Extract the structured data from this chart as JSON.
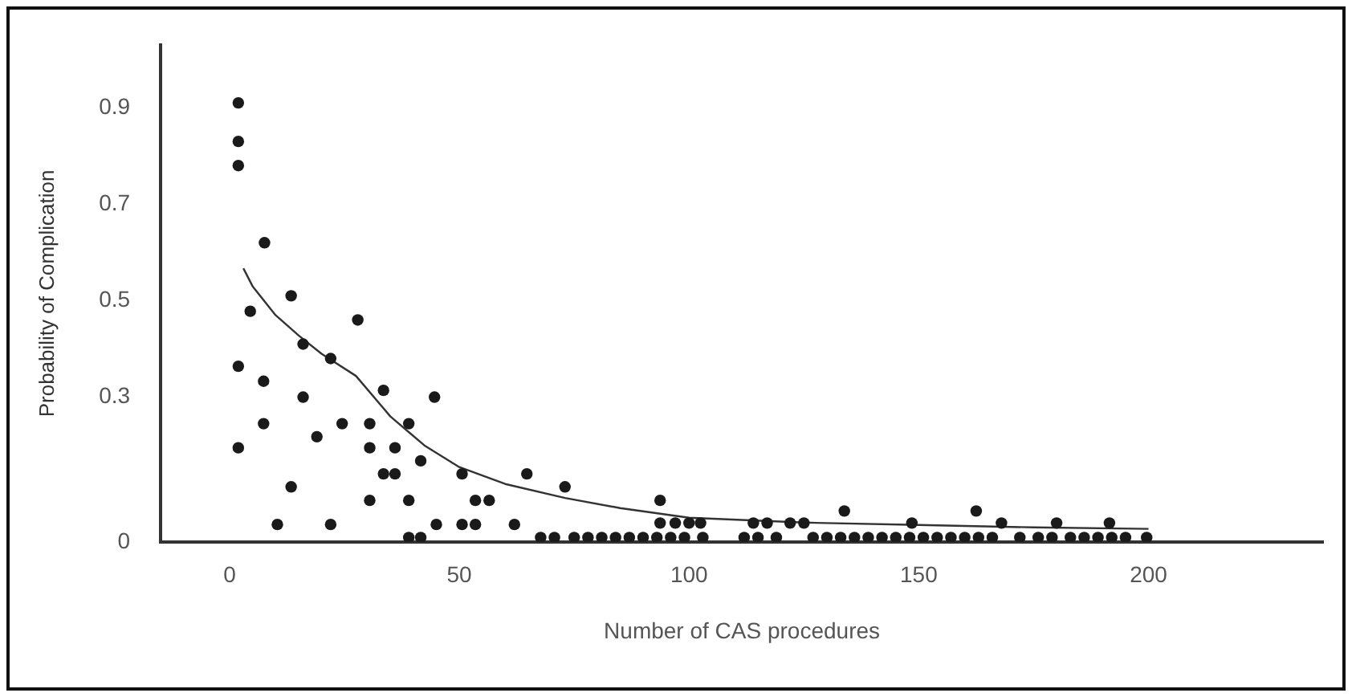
{
  "chart_data": {
    "type": "scatter",
    "xlabel": "Number of CAS procedures",
    "ylabel": "Probability of Complication",
    "xlim": [
      -15,
      238
    ],
    "ylim": [
      0,
      1.03
    ],
    "xticks": [
      0,
      50,
      100,
      150,
      200
    ],
    "yticks": [
      0,
      0.3,
      0.5,
      0.7,
      0.9
    ],
    "grid": false,
    "legend": false,
    "series": [
      {
        "type": "scatter",
        "color": "#1a1a1a",
        "marker": "circle",
        "x": [
          1.9,
          1.9,
          1.9,
          7.6,
          4.5,
          13.4,
          27.9,
          16,
          22,
          1.9,
          7.4,
          16,
          33.5,
          44.6,
          1.9,
          7.4,
          19,
          24.5,
          30.5,
          39,
          30.5,
          36,
          33.5,
          36,
          41.6,
          50.6,
          64.7,
          73,
          13.4,
          30.5,
          39,
          53.5,
          56.5,
          10.4,
          22,
          45,
          50.6,
          53.5,
          62,
          39,
          41.6,
          67.7,
          70.7,
          75,
          78,
          81,
          84,
          87,
          90,
          93.7,
          133.8,
          162.5,
          93.7,
          97,
          100,
          102.5,
          114,
          117,
          122,
          125,
          148.5,
          168,
          180,
          191.5,
          93,
          96,
          99,
          103,
          112,
          115,
          119,
          127,
          130,
          133,
          136,
          139,
          142,
          145,
          148,
          151,
          154,
          157,
          160,
          163,
          166,
          172,
          176,
          179,
          183,
          186,
          189,
          192,
          195,
          199.6
        ],
        "values": [
          0.91,
          0.83,
          0.78,
          0.62,
          0.478,
          0.51,
          0.46,
          0.41,
          0.38,
          0.364,
          0.333,
          0.3,
          0.314,
          0.3,
          0.195,
          0.245,
          0.218,
          0.245,
          0.245,
          0.245,
          0.195,
          0.195,
          0.141,
          0.141,
          0.168,
          0.141,
          0.141,
          0.114,
          0.114,
          0.086,
          0.086,
          0.086,
          0.086,
          0.036,
          0.036,
          0.036,
          0.036,
          0.036,
          0.036,
          0.009,
          0.009,
          0.009,
          0.009,
          0.009,
          0.009,
          0.009,
          0.009,
          0.009,
          0.009,
          0.086,
          0.064,
          0.064,
          0.039,
          0.039,
          0.039,
          0.039,
          0.039,
          0.039,
          0.039,
          0.039,
          0.039,
          0.039,
          0.039,
          0.039,
          0.009,
          0.009,
          0.009,
          0.009,
          0.009,
          0.009,
          0.009,
          0.009,
          0.009,
          0.009,
          0.009,
          0.009,
          0.009,
          0.009,
          0.009,
          0.009,
          0.009,
          0.009,
          0.009,
          0.009,
          0.009,
          0.009,
          0.009,
          0.009,
          0.009,
          0.009,
          0.009,
          0.009,
          0.009,
          0.009
        ]
      },
      {
        "type": "line",
        "color": "#333333",
        "marker": "none",
        "x": [
          3,
          5,
          10,
          15,
          20,
          27.5,
          35,
          42.4,
          50,
          60,
          73,
          85,
          100,
          125,
          150,
          175,
          200
        ],
        "values": [
          0.567,
          0.53,
          0.47,
          0.428,
          0.39,
          0.344,
          0.26,
          0.2,
          0.155,
          0.12,
          0.091,
          0.07,
          0.05,
          0.04,
          0.035,
          0.03,
          0.027
        ]
      }
    ]
  }
}
